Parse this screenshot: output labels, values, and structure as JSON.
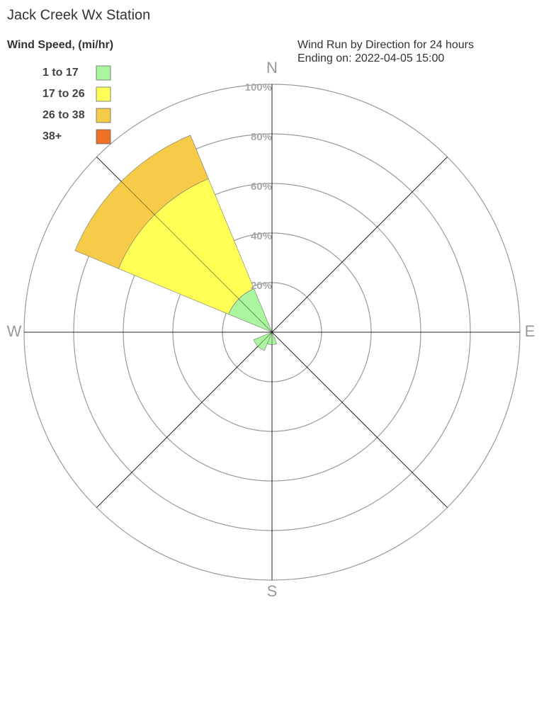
{
  "chart_data": {
    "type": "windrose",
    "title": "Jack Creek Wx Station",
    "legend_title": "Wind Speed, (mi/hr)",
    "subtitle": "Wind Run by Direction for 24 hours",
    "subtitle2": "Ending on: 2022-04-05 15:00",
    "compass": [
      "N",
      "E",
      "S",
      "W"
    ],
    "directions": [
      0,
      45,
      90,
      135,
      180,
      225,
      270,
      315
    ],
    "series": [
      {
        "name": "1 to 17",
        "color": "#aaf59d",
        "values": [
          0,
          0,
          0,
          0,
          5,
          8,
          0,
          19
        ]
      },
      {
        "name": "17 to 26",
        "color": "#ffff55",
        "values": [
          0,
          0,
          0,
          0,
          0,
          0,
          0,
          48
        ]
      },
      {
        "name": "26 to 38",
        "color": "#f5cb48",
        "values": [
          0,
          0,
          0,
          0,
          0,
          0,
          0,
          19
        ]
      },
      {
        "name": "38+",
        "color": "#f07028",
        "values": [
          0,
          0,
          0,
          0,
          0,
          0,
          0,
          0
        ]
      }
    ],
    "rlim": [
      0,
      100
    ],
    "rticks": [
      {
        "value": 20,
        "label": "20%"
      },
      {
        "value": 40,
        "label": "40%"
      },
      {
        "value": 60,
        "label": "60%"
      },
      {
        "value": 80,
        "label": "80%"
      },
      {
        "value": 100,
        "label": "100%"
      }
    ]
  }
}
